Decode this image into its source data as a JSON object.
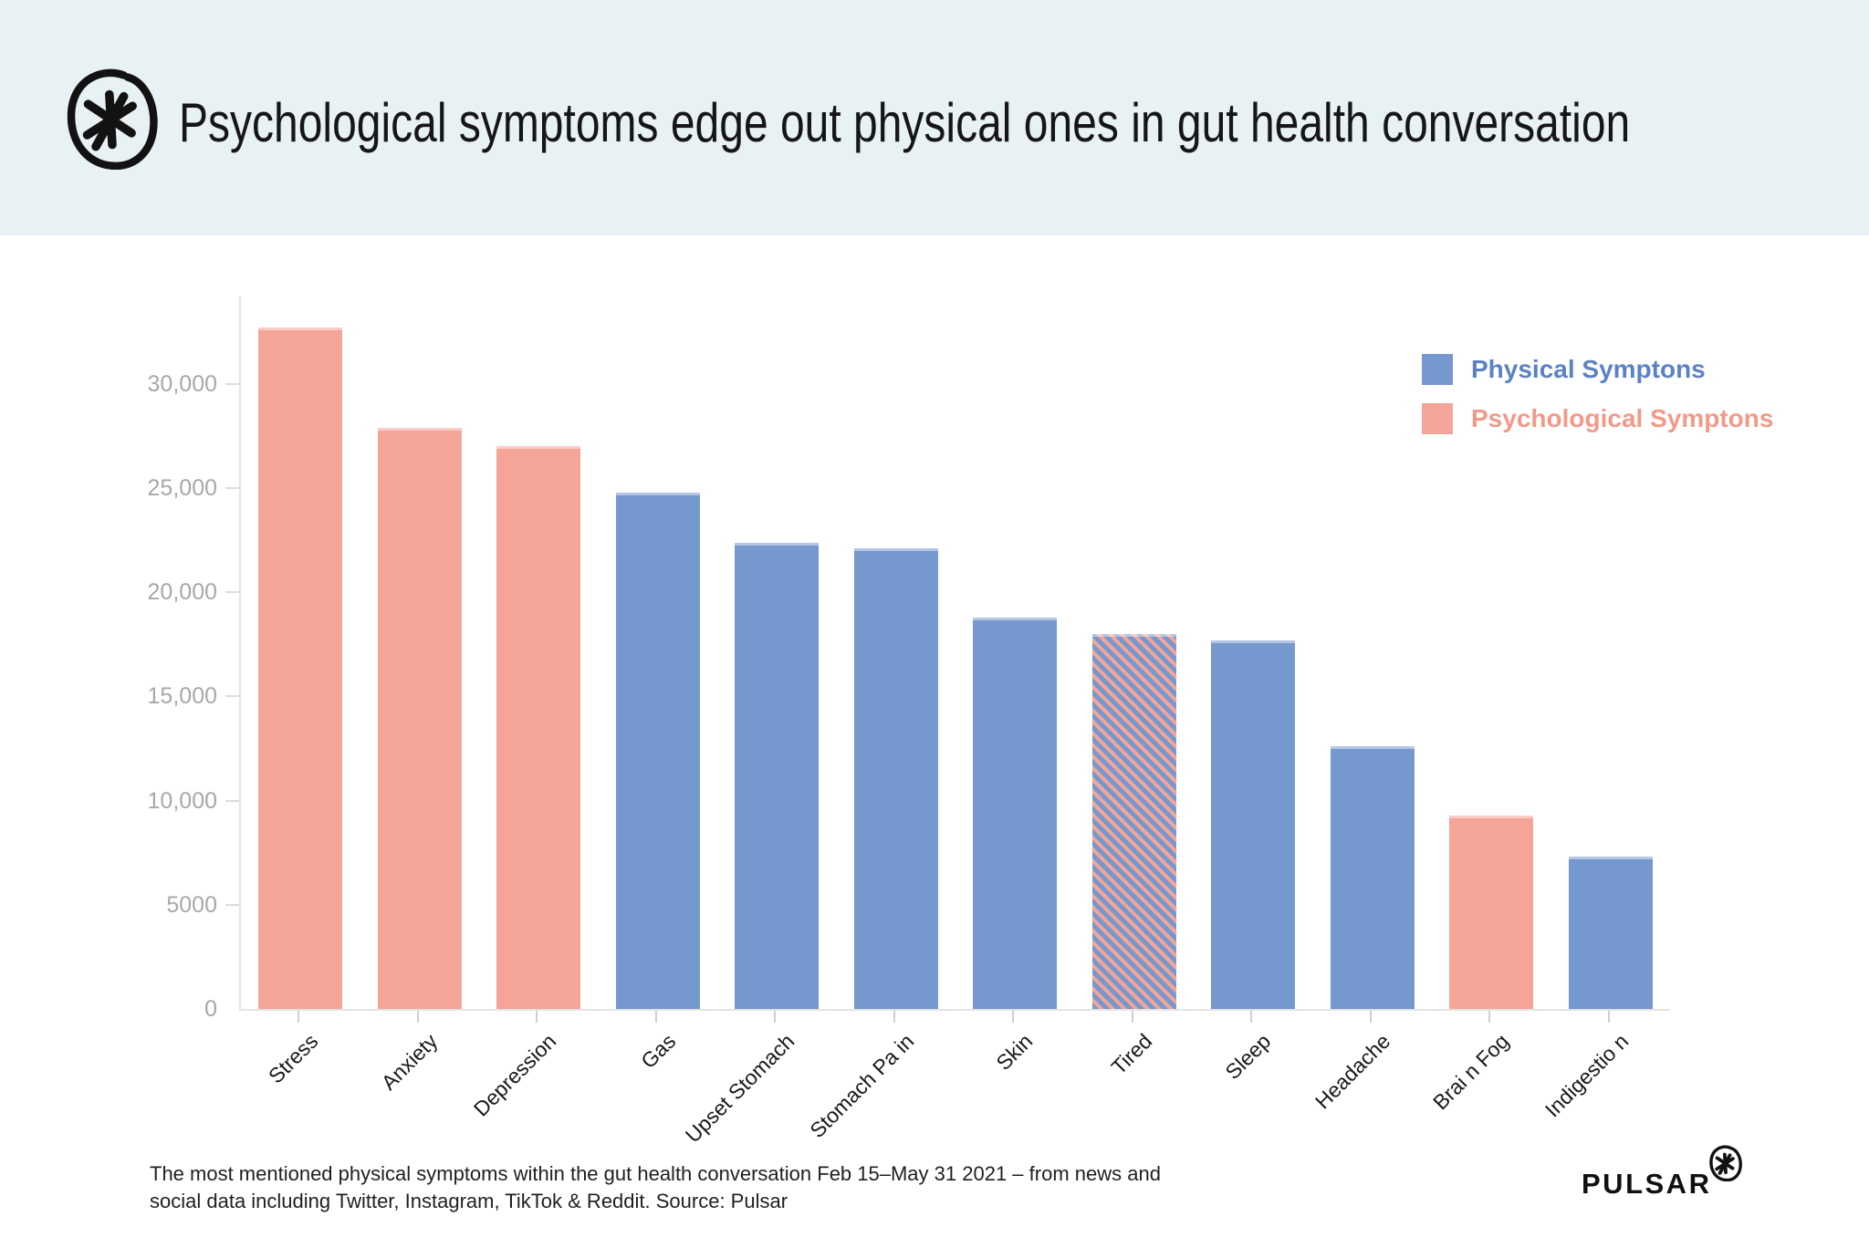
{
  "header": {
    "title": "Psychological symptoms edge out physical ones in gut health conversation",
    "logo_icon": "pulsar-asterisk-logo"
  },
  "legend": {
    "position": "top-right",
    "items": [
      {
        "label": "Physical Symptons",
        "swatch_color": "#7598ce",
        "text_color": "#5b83c4",
        "group": "physical"
      },
      {
        "label": "Psychological Symptons",
        "swatch_color": "#f5a597",
        "text_color": "#f29a8a",
        "group": "psychological"
      }
    ]
  },
  "chart_data": {
    "type": "bar",
    "title": "Psychological symptoms edge out physical ones in gut health conversation",
    "xlabel": "",
    "ylabel": "",
    "ylim": [
      0,
      34200
    ],
    "grid": false,
    "y_ticks": [
      {
        "label": "0",
        "value": 0
      },
      {
        "label": "5000",
        "value": 5000
      },
      {
        "label": "10,000",
        "value": 10000
      },
      {
        "label": "15,000",
        "value": 15000
      },
      {
        "label": "20,000",
        "value": 20000
      },
      {
        "label": "25,000",
        "value": 25000
      },
      {
        "label": "30,000",
        "value": 30000
      }
    ],
    "categories": [
      "Stress",
      "Anxiety",
      "Depression",
      "Gas",
      "Upset Stomach",
      "Stomach Pa in",
      "Skin",
      "Tired",
      "Sleep",
      "Headache",
      "Brai n Fog",
      "Indigestio n"
    ],
    "bars": [
      {
        "label": "Stress",
        "value": 32700,
        "group": "psychological"
      },
      {
        "label": "Anxiety",
        "value": 27900,
        "group": "psychological"
      },
      {
        "label": "Depression",
        "value": 27000,
        "group": "psychological"
      },
      {
        "label": "Gas",
        "value": 24800,
        "group": "physical"
      },
      {
        "label": "Upset Stomach",
        "value": 22400,
        "group": "physical"
      },
      {
        "label": "Stomach Pa in",
        "value": 22100,
        "group": "physical"
      },
      {
        "label": "Skin",
        "value": 18800,
        "group": "physical"
      },
      {
        "label": "Tired",
        "value": 18000,
        "group": "both"
      },
      {
        "label": "Sleep",
        "value": 17700,
        "group": "physical"
      },
      {
        "label": "Headache",
        "value": 12600,
        "group": "physical"
      },
      {
        "label": "Brai n Fog",
        "value": 9300,
        "group": "psychological"
      },
      {
        "label": "Indigestio n",
        "value": 7300,
        "group": "physical"
      }
    ],
    "group_colors": {
      "physical": "#7598ce",
      "psychological": "#f5a597",
      "both": "hatched-diagonal-blue-salmon"
    }
  },
  "colors": {
    "header_bg": "#e8f1f4",
    "bar_blue": "#7598ce",
    "bar_salmon": "#f5a597",
    "axis": "#e4e4e4",
    "y_label": "#a8a8a8"
  },
  "footer": {
    "caption_line1": "The most mentioned physical symptoms within the gut health conversation Feb 15–May 31 2021 – from news and",
    "caption_line2": "social data including Twitter, Instagram, TikTok & Reddit. Source: Pulsar",
    "brand": "PULSAR",
    "brand_icon": "pulsar-asterisk-logo"
  }
}
